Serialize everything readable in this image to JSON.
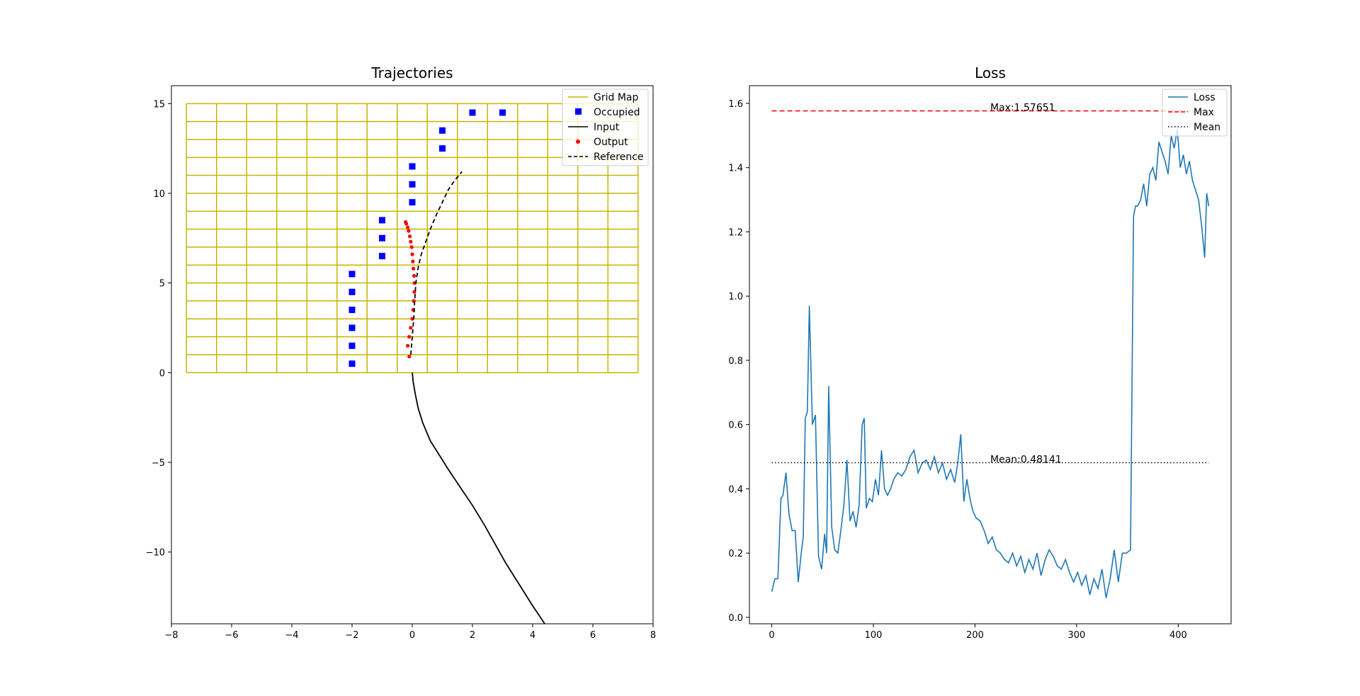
{
  "chart_data": [
    {
      "type": "line",
      "title": "Trajectories",
      "xlim": [
        -8,
        8
      ],
      "ylim": [
        -14,
        16
      ],
      "xticks": [
        -8,
        -6,
        -4,
        -2,
        0,
        2,
        4,
        6,
        8
      ],
      "yticks": [
        -10,
        -5,
        0,
        5,
        10,
        15
      ],
      "xtick_labels": [
        "−8",
        "−6",
        "−4",
        "−2",
        "0",
        "2",
        "4",
        "6",
        "8"
      ],
      "ytick_labels": [
        "−10",
        "−5",
        "0",
        "5",
        "10",
        "15"
      ],
      "grid_map": {
        "x_edges": [
          -7.5,
          -6.5,
          -5.5,
          -4.5,
          -3.5,
          -2.5,
          -1.5,
          -0.5,
          0.5,
          1.5,
          2.5,
          3.5,
          4.5,
          5.5,
          6.5,
          7.5
        ],
        "y_edges": [
          0,
          1,
          2,
          3,
          4,
          5,
          6,
          7,
          8,
          9,
          10,
          11,
          12,
          13,
          14,
          15
        ],
        "color": "#c8b400"
      },
      "legend": {
        "position": "top-right",
        "entries": [
          "Grid Map",
          "Occupied",
          "Input",
          "Output",
          "Reference"
        ]
      },
      "series": [
        {
          "name": "Occupied",
          "kind": "scatter",
          "marker": "square",
          "color": "#0000ff",
          "points": [
            [
              -2,
              0.5
            ],
            [
              -2,
              1.5
            ],
            [
              -2,
              2.5
            ],
            [
              -2,
              3.5
            ],
            [
              -2,
              4.5
            ],
            [
              -2,
              5.5
            ],
            [
              -1,
              6.5
            ],
            [
              -1,
              7.5
            ],
            [
              -1,
              8.5
            ],
            [
              0,
              9.5
            ],
            [
              0,
              10.5
            ],
            [
              0,
              11.5
            ],
            [
              1,
              12.5
            ],
            [
              1,
              13.5
            ],
            [
              2,
              14.5
            ],
            [
              3,
              14.5
            ]
          ]
        },
        {
          "name": "Input",
          "kind": "line",
          "color": "#000000",
          "points": [
            [
              0,
              0
            ],
            [
              0.03,
              -0.5
            ],
            [
              0.1,
              -1.2
            ],
            [
              0.2,
              -2
            ],
            [
              0.35,
              -2.8
            ],
            [
              0.6,
              -3.8
            ],
            [
              0.9,
              -4.6
            ],
            [
              1.2,
              -5.4
            ],
            [
              1.6,
              -6.4
            ],
            [
              2.0,
              -7.4
            ],
            [
              2.4,
              -8.5
            ],
            [
              2.8,
              -9.7
            ],
            [
              3.1,
              -10.6
            ],
            [
              3.4,
              -11.4
            ],
            [
              3.7,
              -12.2
            ],
            [
              4.0,
              -13.0
            ],
            [
              4.2,
              -13.5
            ],
            [
              4.4,
              -14.0
            ]
          ]
        },
        {
          "name": "Output",
          "kind": "scatter",
          "marker": "dot",
          "color": "#ff0000",
          "points": [
            [
              -0.1,
              0.9
            ],
            [
              -0.15,
              1.5
            ],
            [
              -0.1,
              2.0
            ],
            [
              -0.05,
              2.5
            ],
            [
              0.0,
              3.0
            ],
            [
              0.03,
              3.5
            ],
            [
              0.05,
              4.0
            ],
            [
              0.07,
              4.5
            ],
            [
              0.07,
              5.0
            ],
            [
              0.06,
              5.4
            ],
            [
              0.04,
              5.8
            ],
            [
              0.02,
              6.2
            ],
            [
              0.0,
              6.6
            ],
            [
              -0.02,
              7.0
            ],
            [
              -0.05,
              7.3
            ],
            [
              -0.08,
              7.6
            ],
            [
              -0.12,
              7.9
            ],
            [
              -0.15,
              8.1
            ],
            [
              -0.2,
              8.3
            ],
            [
              -0.22,
              8.4
            ]
          ]
        },
        {
          "name": "Reference",
          "kind": "line",
          "dash": "dashed",
          "color": "#000000",
          "points": [
            [
              -0.05,
              1.0
            ],
            [
              0.0,
              2.0
            ],
            [
              0.05,
              3.0
            ],
            [
              0.08,
              4.0
            ],
            [
              0.12,
              5.0
            ],
            [
              0.2,
              5.9
            ],
            [
              0.3,
              6.6
            ],
            [
              0.45,
              7.3
            ],
            [
              0.6,
              8.0
            ],
            [
              0.8,
              8.8
            ],
            [
              1.0,
              9.5
            ],
            [
              1.2,
              10.2
            ],
            [
              1.4,
              10.7
            ],
            [
              1.6,
              11.1
            ],
            [
              1.65,
              11.2
            ]
          ]
        }
      ]
    },
    {
      "type": "line",
      "title": "Loss",
      "xlim": [
        -22,
        452
      ],
      "ylim": [
        -0.02,
        1.655
      ],
      "xticks": [
        0,
        100,
        200,
        300,
        400
      ],
      "yticks": [
        0,
        0.2,
        0.4,
        0.6,
        0.8,
        1.0,
        1.2,
        1.4,
        1.6
      ],
      "xtick_labels": [
        "0",
        "100",
        "200",
        "300",
        "400"
      ],
      "ytick_labels": [
        "0.0",
        "0.2",
        "0.4",
        "0.6",
        "0.8",
        "1.0",
        "1.2",
        "1.4",
        "1.6"
      ],
      "max": 1.57651,
      "mean": 0.48141,
      "max_label": "Max:1.57651",
      "mean_label": "Mean:0.48141",
      "legend": {
        "position": "top-right",
        "entries": [
          "Loss",
          "Max",
          "Mean"
        ]
      },
      "series": [
        {
          "name": "Loss",
          "color": "#1f77b4",
          "x": [
            0,
            3,
            6,
            9,
            11,
            14,
            17,
            20,
            23,
            26,
            29,
            31,
            33,
            35,
            37,
            40,
            43,
            46,
            49,
            52,
            54,
            56,
            59,
            62,
            65,
            68,
            71,
            74,
            77,
            80,
            83,
            86,
            89,
            91,
            93,
            96,
            99,
            102,
            105,
            108,
            111,
            114,
            117,
            120,
            124,
            128,
            132,
            136,
            140,
            144,
            148,
            152,
            156,
            160,
            164,
            168,
            172,
            176,
            180,
            183,
            186,
            189,
            192,
            195,
            198,
            201,
            205,
            209,
            213,
            217,
            221,
            225,
            229,
            233,
            237,
            241,
            245,
            249,
            253,
            257,
            261,
            265,
            269,
            273,
            277,
            281,
            285,
            289,
            293,
            297,
            301,
            305,
            309,
            313,
            317,
            321,
            325,
            329,
            333,
            337,
            341,
            345,
            349,
            353,
            356,
            358,
            360,
            363,
            366,
            369,
            372,
            375,
            378,
            381,
            384,
            387,
            390,
            393,
            396,
            399,
            402,
            405,
            408,
            411,
            414,
            417,
            420,
            423,
            426,
            428,
            430
          ],
          "y": [
            0.08,
            0.12,
            0.12,
            0.37,
            0.38,
            0.45,
            0.32,
            0.27,
            0.27,
            0.11,
            0.2,
            0.25,
            0.62,
            0.64,
            0.97,
            0.6,
            0.63,
            0.19,
            0.15,
            0.26,
            0.2,
            0.72,
            0.28,
            0.21,
            0.2,
            0.27,
            0.35,
            0.49,
            0.3,
            0.33,
            0.28,
            0.35,
            0.6,
            0.62,
            0.34,
            0.37,
            0.36,
            0.43,
            0.38,
            0.52,
            0.4,
            0.38,
            0.4,
            0.43,
            0.45,
            0.44,
            0.46,
            0.5,
            0.52,
            0.45,
            0.48,
            0.49,
            0.46,
            0.5,
            0.45,
            0.48,
            0.43,
            0.46,
            0.42,
            0.48,
            0.57,
            0.36,
            0.43,
            0.37,
            0.33,
            0.31,
            0.3,
            0.27,
            0.23,
            0.25,
            0.21,
            0.2,
            0.18,
            0.17,
            0.2,
            0.16,
            0.19,
            0.14,
            0.18,
            0.15,
            0.2,
            0.13,
            0.18,
            0.21,
            0.19,
            0.16,
            0.15,
            0.18,
            0.14,
            0.11,
            0.14,
            0.1,
            0.13,
            0.07,
            0.12,
            0.09,
            0.15,
            0.06,
            0.12,
            0.21,
            0.11,
            0.2,
            0.2,
            0.21,
            1.25,
            1.28,
            1.28,
            1.3,
            1.35,
            1.28,
            1.38,
            1.4,
            1.36,
            1.48,
            1.45,
            1.42,
            1.38,
            1.5,
            1.46,
            1.52,
            1.4,
            1.44,
            1.38,
            1.42,
            1.36,
            1.33,
            1.3,
            1.22,
            1.12,
            1.32,
            1.28
          ]
        }
      ]
    }
  ]
}
